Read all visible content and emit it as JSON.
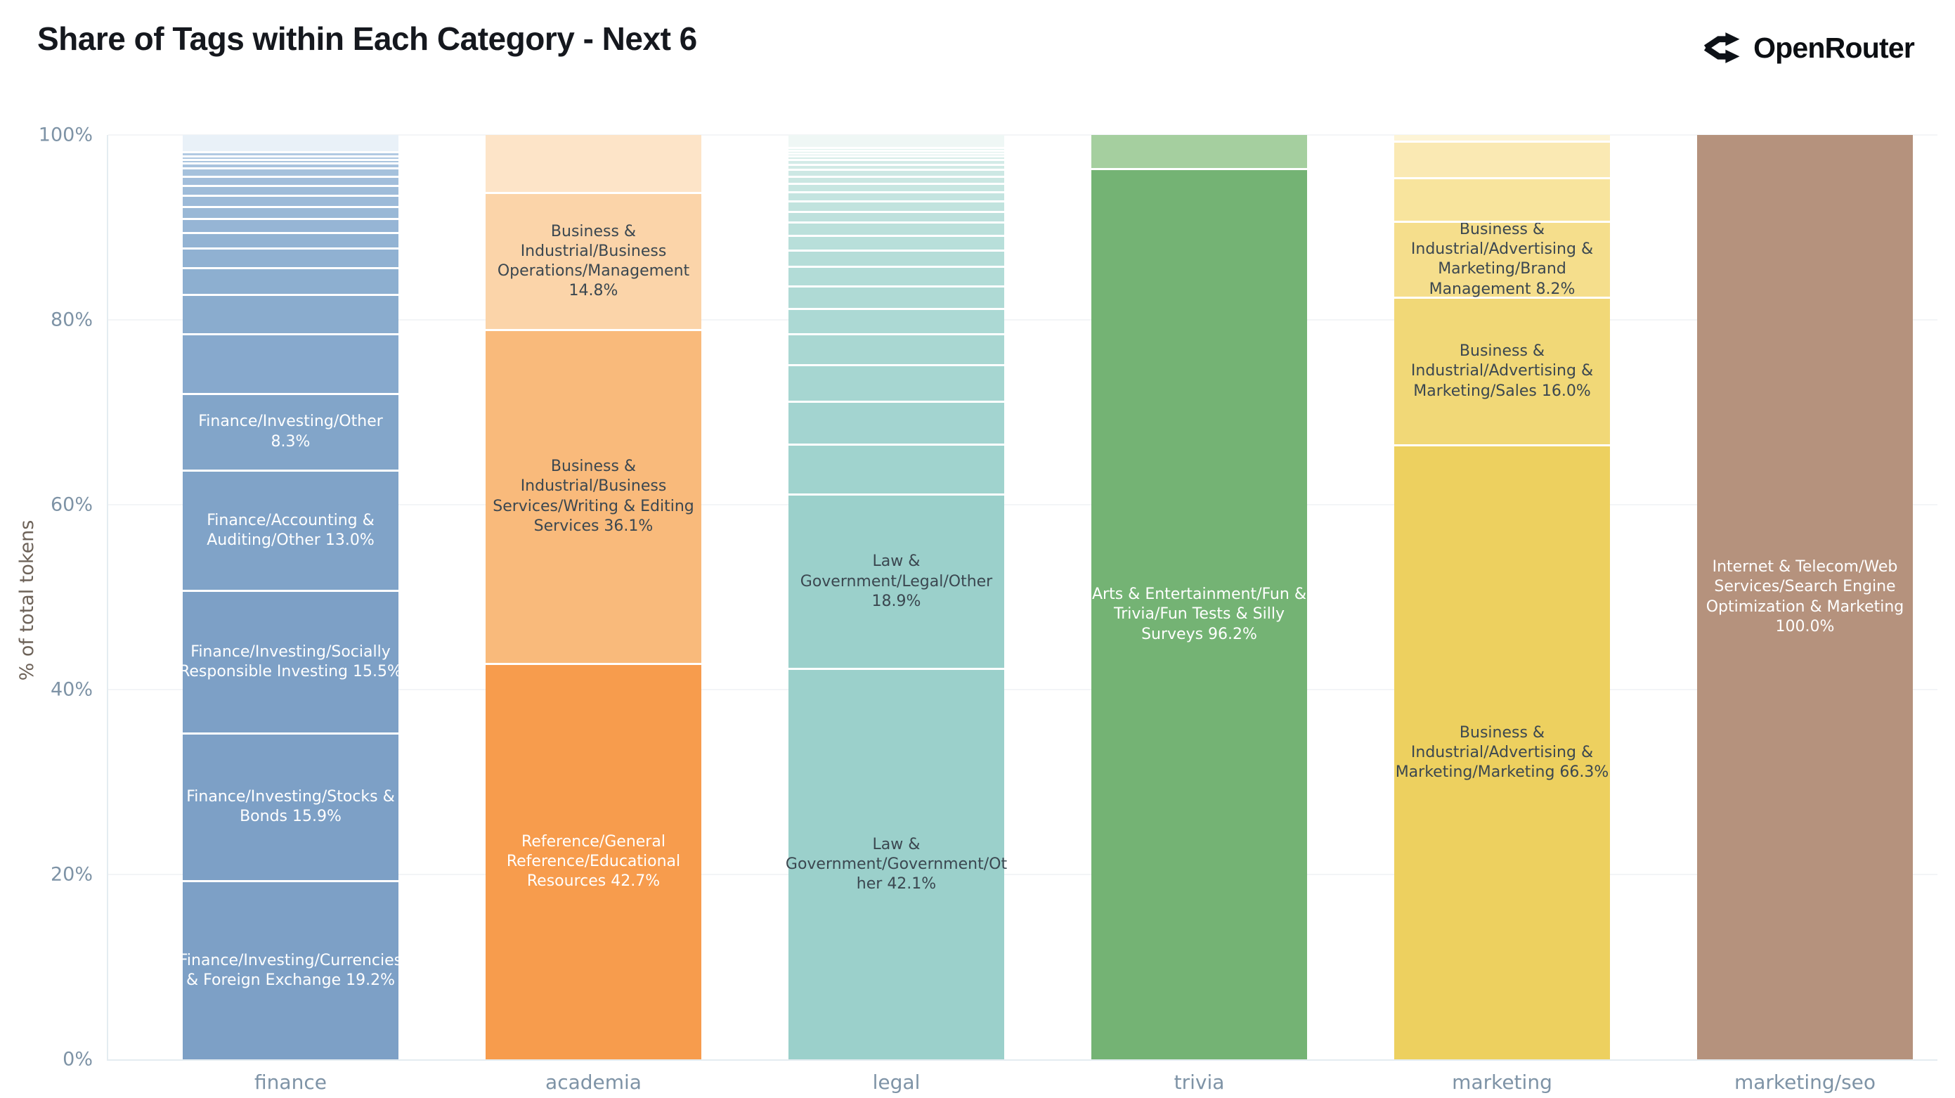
{
  "header": {
    "title": "Share of Tags within Each Category - Next 6",
    "brand": "OpenRouter",
    "brand_icon": "openrouter-routing-icon"
  },
  "chart_data": {
    "type": "bar",
    "subtype": "stacked-100-percent",
    "title": "Share of Tags within Each Category - Next 6",
    "xlabel": "",
    "ylabel": "% of total tokens",
    "ylim": [
      0,
      100
    ],
    "grid": "horizontal",
    "legend": "none",
    "yticks": [
      "0%",
      "20%",
      "40%",
      "60%",
      "80%",
      "100%"
    ],
    "categories": [
      "finance",
      "academia",
      "legal",
      "trivia",
      "marketing",
      "marketing/seo"
    ],
    "colors": {
      "finance_main": "#7da0c6",
      "academia_main": "#f79c4d",
      "legal_main": "#9bd0cb",
      "trivia_main": "#74b374",
      "marketing_main": "#edd05f",
      "marketing_seo_main": "#b5927d",
      "axis_text": "#7e93a6",
      "label_dark": "#3b4750",
      "label_light": "#ffffff"
    },
    "bars": [
      {
        "category": "finance",
        "segments": [
          {
            "v": 19.2,
            "c": "#7da0c6",
            "t": "Finance/Investing/Currencies & Foreign Exchange 19.2%",
            "tc": "light"
          },
          {
            "v": 15.9,
            "c": "#7da0c6",
            "t": "Finance/Investing/Stocks & Bonds 15.9%",
            "tc": "light"
          },
          {
            "v": 15.5,
            "c": "#7da0c6",
            "t": "Finance/Investing/Socially Responsible Investing 15.5%",
            "tc": "light"
          },
          {
            "v": 13.0,
            "c": "#80a3c8",
            "t": "Finance/Accounting & Auditing/Other 13.0%",
            "tc": "light"
          },
          {
            "v": 8.3,
            "c": "#82a5c9",
            "t": "Finance/Investing/Other 8.3%",
            "tc": "light"
          },
          {
            "v": 6.4,
            "c": "#87a9cd",
            "t": "",
            "tc": "light"
          },
          {
            "v": 4.3,
            "c": "#8aacce",
            "t": "",
            "tc": "light"
          },
          {
            "v": 2.9,
            "c": "#8dafd0",
            "t": "",
            "tc": "light"
          },
          {
            "v": 2.1,
            "c": "#90b1d2",
            "t": "",
            "tc": "light"
          },
          {
            "v": 1.7,
            "c": "#93b3d3",
            "t": "",
            "tc": "light"
          },
          {
            "v": 1.5,
            "c": "#96b5d5",
            "t": "",
            "tc": "light"
          },
          {
            "v": 1.3,
            "c": "#99b8d6",
            "t": "",
            "tc": "light"
          },
          {
            "v": 1.2,
            "c": "#9cbad8",
            "t": "",
            "tc": "light"
          },
          {
            "v": 1.1,
            "c": "#9fbcd9",
            "t": "",
            "tc": "light"
          },
          {
            "v": 1.0,
            "c": "#a2bedb",
            "t": "",
            "tc": "light"
          },
          {
            "v": 0.9,
            "c": "#a5c1dc",
            "t": "",
            "tc": "light"
          },
          {
            "v": 0.5,
            "c": "#a8c3de",
            "t": "",
            "tc": "light"
          },
          {
            "v": 0.4,
            "c": "#abc5df",
            "t": "",
            "tc": "light"
          },
          {
            "v": 0.4,
            "c": "#aec7e1",
            "t": "",
            "tc": "light"
          },
          {
            "v": 0.4,
            "c": "#b1c9e2",
            "t": "",
            "tc": "light"
          },
          {
            "v": 2.0,
            "c": "#e9f1f8",
            "t": "",
            "tc": "light"
          }
        ]
      },
      {
        "category": "academia",
        "segments": [
          {
            "v": 42.7,
            "c": "#f79c4d",
            "t": "Reference/General Reference/Educational Resources 42.7%",
            "tc": "light"
          },
          {
            "v": 36.1,
            "c": "#f9ba7b",
            "t": "Business & Industrial/Business Services/Writing & Editing Services 36.1%",
            "tc": "dark"
          },
          {
            "v": 14.8,
            "c": "#fbd4a9",
            "t": "Business & Industrial/Business Operations/Management 14.8%",
            "tc": "dark"
          },
          {
            "v": 6.4,
            "c": "#fde4c8",
            "t": "",
            "tc": "dark"
          }
        ]
      },
      {
        "category": "legal",
        "segments": [
          {
            "v": 42.1,
            "c": "#9bd0cb",
            "t": "Law & Government/Government/Other 42.1%",
            "tc": "dark"
          },
          {
            "v": 18.9,
            "c": "#9bd0cb",
            "t": "Law & Government/Legal/Other 18.9%",
            "tc": "dark"
          },
          {
            "v": 5.4,
            "c": "#a0d3ce",
            "t": "",
            "tc": "dark"
          },
          {
            "v": 4.6,
            "c": "#a3d4d0",
            "t": "",
            "tc": "dark"
          },
          {
            "v": 4.0,
            "c": "#a6d6d1",
            "t": "",
            "tc": "dark"
          },
          {
            "v": 3.3,
            "c": "#a9d7d2",
            "t": "",
            "tc": "dark"
          },
          {
            "v": 2.8,
            "c": "#acd9d4",
            "t": "",
            "tc": "dark"
          },
          {
            "v": 2.4,
            "c": "#afdad5",
            "t": "",
            "tc": "dark"
          },
          {
            "v": 2.1,
            "c": "#b2dcd7",
            "t": "",
            "tc": "dark"
          },
          {
            "v": 1.8,
            "c": "#b5ddd8",
            "t": "",
            "tc": "dark"
          },
          {
            "v": 1.6,
            "c": "#b8dfda",
            "t": "",
            "tc": "dark"
          },
          {
            "v": 1.4,
            "c": "#bbe0db",
            "t": "",
            "tc": "dark"
          },
          {
            "v": 1.2,
            "c": "#bee1dd",
            "t": "",
            "tc": "dark"
          },
          {
            "v": 1.1,
            "c": "#c1e3de",
            "t": "",
            "tc": "dark"
          },
          {
            "v": 1.0,
            "c": "#c4e4e0",
            "t": "",
            "tc": "dark"
          },
          {
            "v": 0.9,
            "c": "#c7e6e1",
            "t": "",
            "tc": "dark"
          },
          {
            "v": 0.8,
            "c": "#cae7e2",
            "t": "",
            "tc": "dark"
          },
          {
            "v": 0.7,
            "c": "#cde8e4",
            "t": "",
            "tc": "dark"
          },
          {
            "v": 0.6,
            "c": "#d0eae5",
            "t": "",
            "tc": "dark"
          },
          {
            "v": 0.5,
            "c": "#d3ebe7",
            "t": "",
            "tc": "dark"
          },
          {
            "v": 0.4,
            "c": "#d6ece8",
            "t": "",
            "tc": "dark"
          },
          {
            "v": 0.3,
            "c": "#d9eeea",
            "t": "",
            "tc": "dark"
          },
          {
            "v": 0.3,
            "c": "#dcefeb",
            "t": "",
            "tc": "dark"
          },
          {
            "v": 0.3,
            "c": "#dff1ed",
            "t": "",
            "tc": "dark"
          },
          {
            "v": 1.5,
            "c": "#eff7f5",
            "t": "",
            "tc": "dark"
          }
        ]
      },
      {
        "category": "trivia",
        "segments": [
          {
            "v": 96.2,
            "c": "#74b374",
            "t": "Arts & Entertainment/Fun & Trivia/Fun Tests & Silly Surveys 96.2%",
            "tc": "light"
          },
          {
            "v": 3.8,
            "c": "#a5cf9f",
            "t": "",
            "tc": "light"
          }
        ]
      },
      {
        "category": "marketing",
        "segments": [
          {
            "v": 66.3,
            "c": "#edd05f",
            "t": "Business & Industrial/Advertising & Marketing/Marketing 66.3%",
            "tc": "dark"
          },
          {
            "v": 16.0,
            "c": "#f1d877",
            "t": "Business & Industrial/Advertising & Marketing/Sales 16.0%",
            "tc": "dark"
          },
          {
            "v": 8.2,
            "c": "#f5de8c",
            "t": "Business & Industrial/Advertising & Marketing/Brand Management 8.2%",
            "tc": "dark"
          },
          {
            "v": 4.7,
            "c": "#f8e49d",
            "t": "",
            "tc": "dark"
          },
          {
            "v": 4.0,
            "c": "#fae9b3",
            "t": "",
            "tc": "dark"
          },
          {
            "v": 0.8,
            "c": "#fdf4d6",
            "t": "",
            "tc": "dark"
          }
        ]
      },
      {
        "category": "marketing/seo",
        "segments": [
          {
            "v": 100.0,
            "c": "#b5927d",
            "t": "Internet & Telecom/Web Services/Search Engine Optimization & Marketing 100.0%",
            "tc": "light"
          }
        ]
      }
    ]
  }
}
